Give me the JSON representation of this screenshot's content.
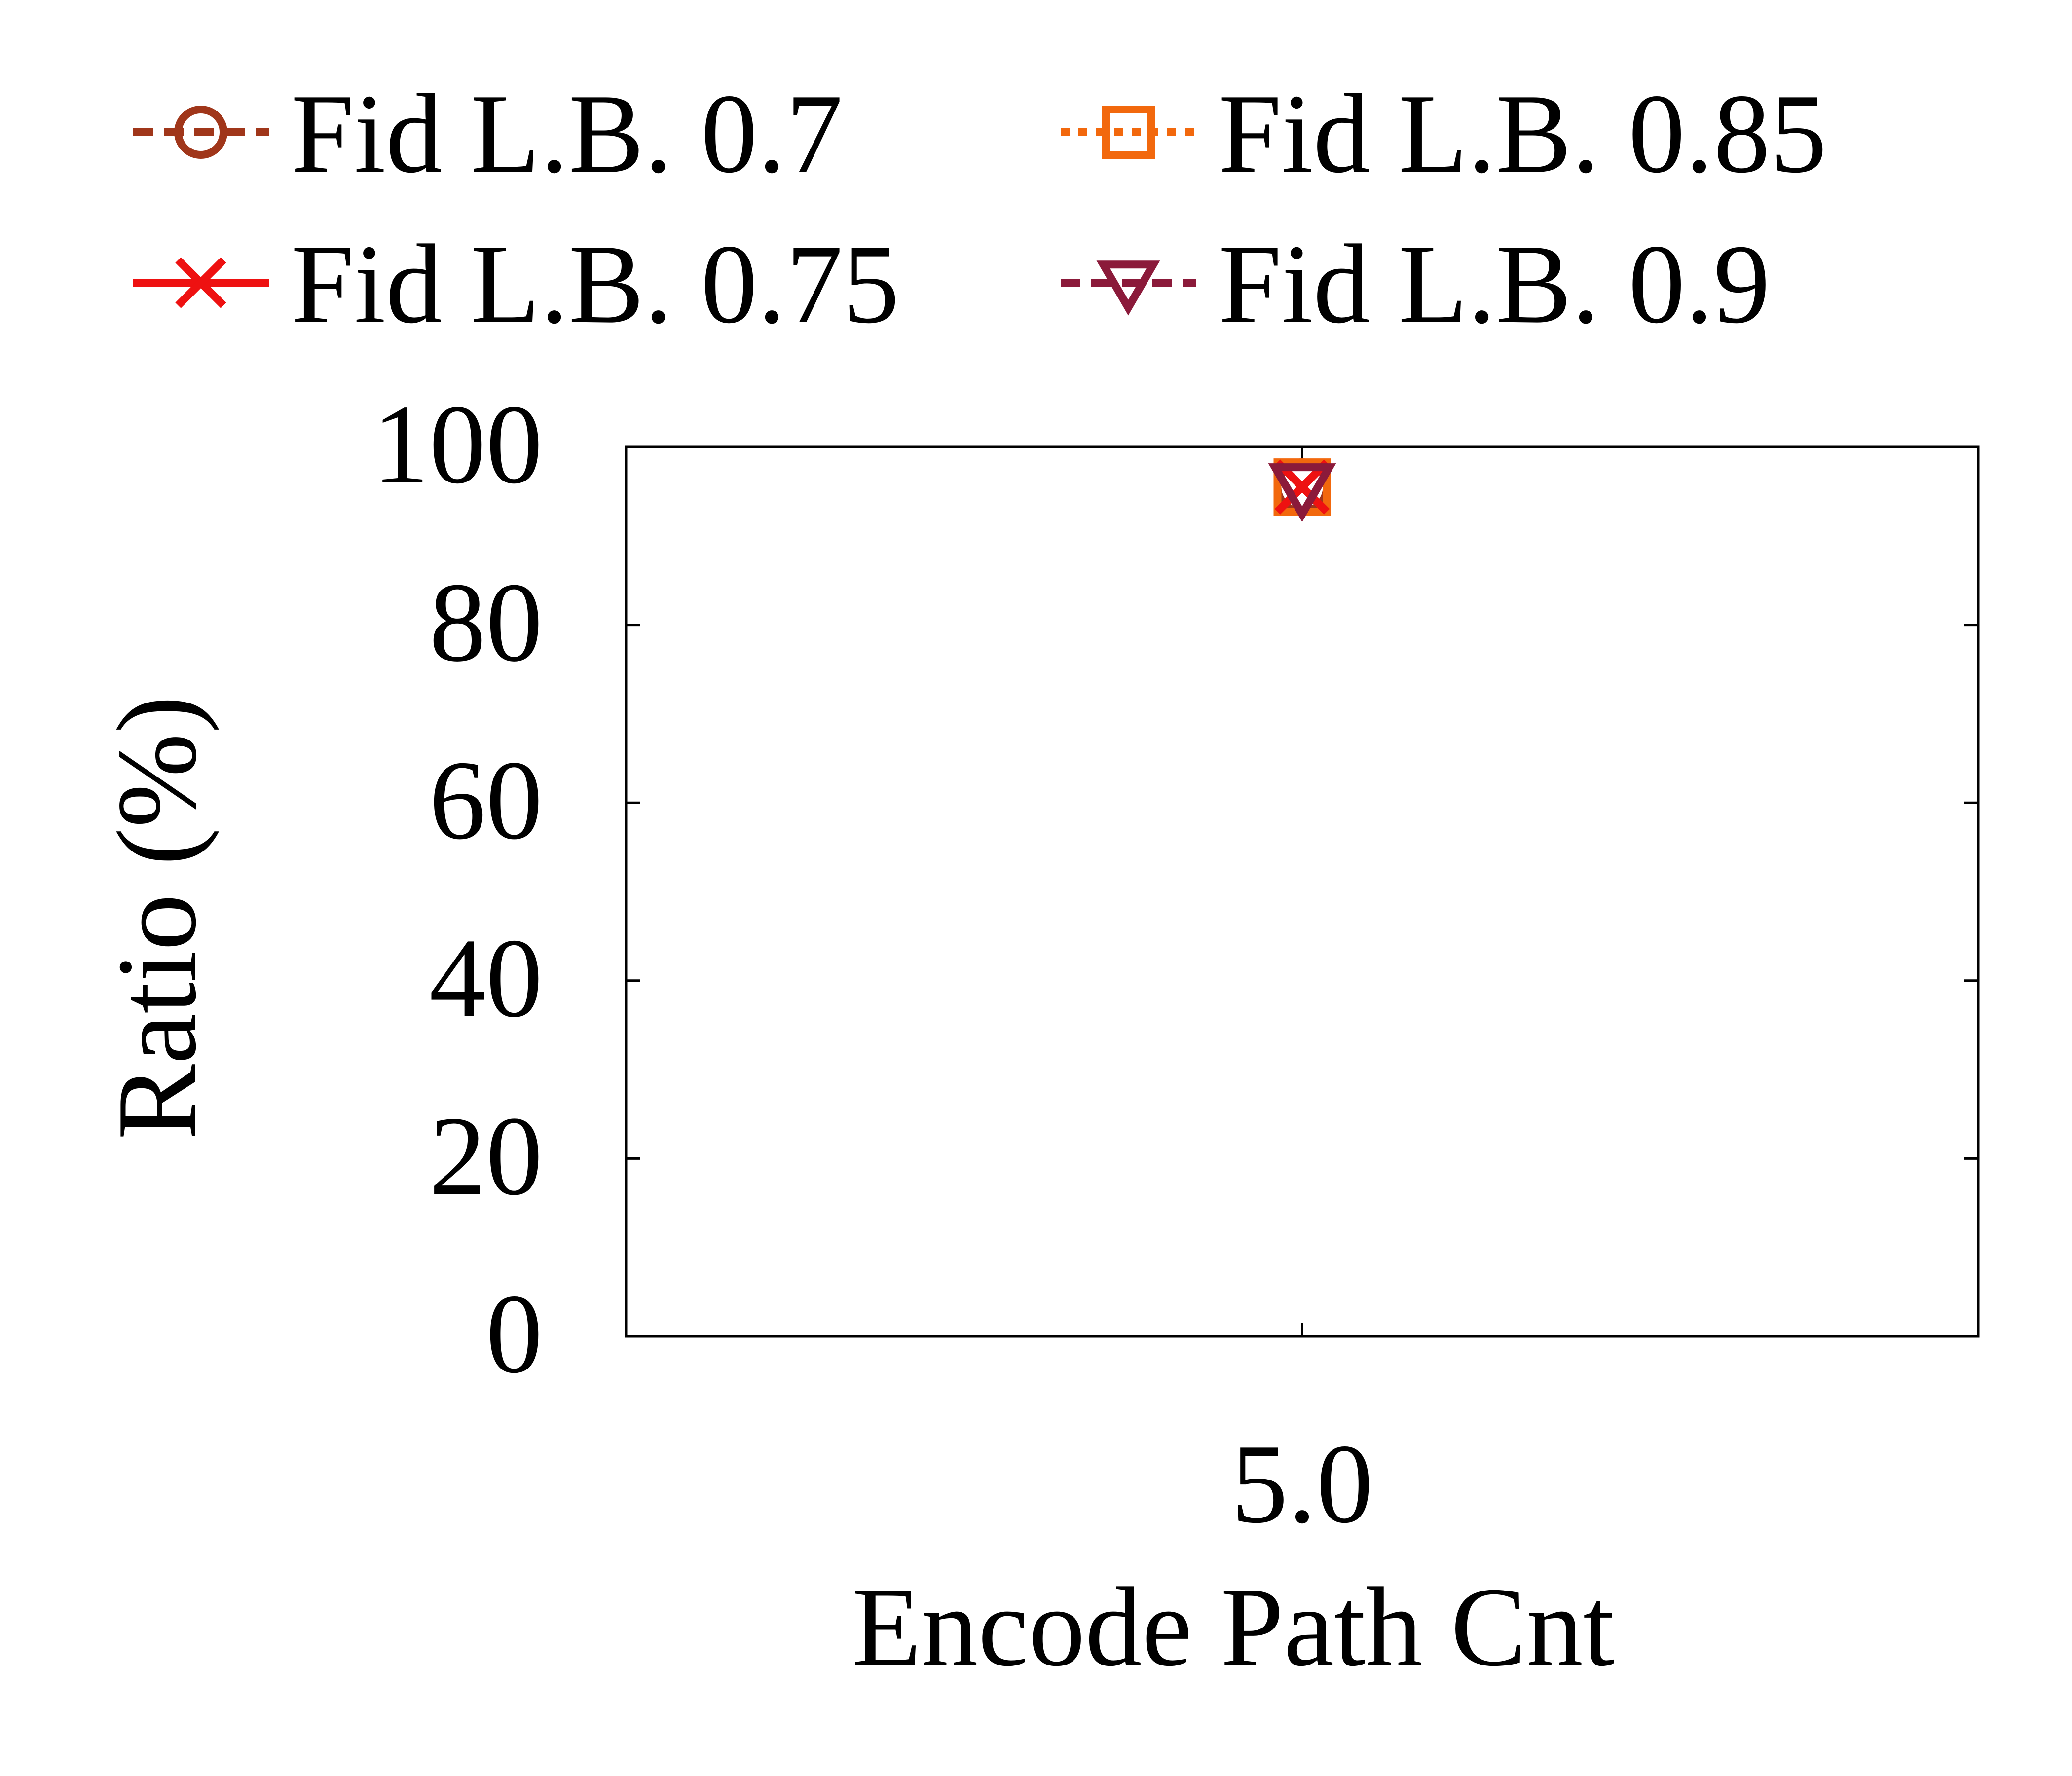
{
  "chart_data": {
    "type": "line",
    "title": "",
    "xlabel": "Encode Path Cnt",
    "ylabel": "Ratio (%)",
    "x_ticks": [
      "5.0"
    ],
    "y_ticks": [
      "0",
      "20",
      "40",
      "60",
      "80",
      "100"
    ],
    "ylim": [
      0,
      100
    ],
    "grid": false,
    "legend": {
      "placement": "top",
      "columns": 2
    },
    "x": [
      5.0
    ],
    "series": [
      {
        "name": "Fid L.B. 0.7",
        "values": [
          95.5
        ],
        "color": "#a0361a",
        "marker": "circle",
        "linestyle": "dashed"
      },
      {
        "name": "Fid L.B. 0.75",
        "values": [
          95.5
        ],
        "color": "#ee1111",
        "marker": "x",
        "linestyle": "solid"
      },
      {
        "name": "Fid L.B. 0.85",
        "values": [
          95.5
        ],
        "color": "#f2680d",
        "marker": "square",
        "linestyle": "dotted"
      },
      {
        "name": "Fid L.B. 0.9",
        "values": [
          95.5
        ],
        "color": "#8b1a3a",
        "marker": "triangle-down",
        "linestyle": "dashed"
      }
    ]
  }
}
